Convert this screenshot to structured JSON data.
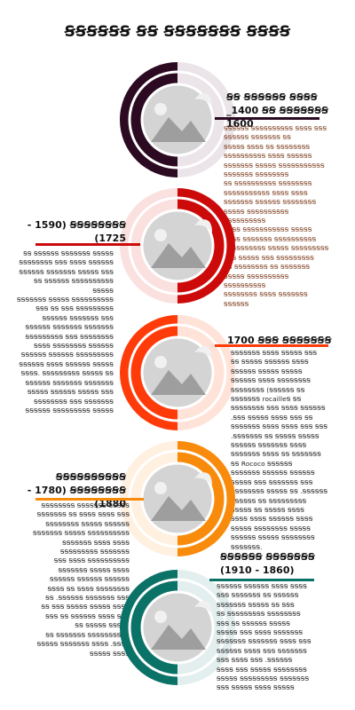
{
  "title": "ꞨꞨꞨꞨꞨꞨ ꞨꞨ ꞨꞨꞨꞨꞨꞨꞨ ꞨꞨꞨꞨ",
  "colors": {
    "era1": "#2b0a22",
    "era2": "#cc0a0a",
    "era3": "#ff3b0a",
    "era4": "#f98b0c",
    "era5": "#0b7268"
  },
  "sections": [
    {
      "heading": "ꞨꞨ ꞨꞨꞨꞨꞨꞨ ꞨꞨꞨꞨ\n_1400 ꞨꞨ ꞨꞨꞨꞨꞨꞨꞨ\n1600",
      "body": "ꞨꞨꞨꞨꞨꞨ ꞨꞨꞨꞨꞨꞨꞨꞨꞨꞨ ꞨꞨꞨꞨ ꞨꞨꞨ\nꞨꞨꞨꞨꞨꞨ ꞨꞨꞨꞨꞨꞨꞨ ꞨꞨ\nꞨꞨꞨꞨꞨ ꞨꞨꞨꞨ ꞨꞨ ꞨꞨꞨꞨꞨꞨꞨꞨ\nꞨꞨꞨꞨꞨꞨꞨꞨꞨꞨ ꞨꞨꞨꞨ ꞨꞨꞨꞨꞨꞨ\nꞨꞨꞨꞨꞨꞨꞨ ꞨꞨꞨꞨꞨ ꞨꞨꞨꞨꞨꞨꞨꞨꞨꞨꞨ\nꞨꞨꞨꞨꞨꞨꞨ ꞨꞨꞨꞨꞨꞨꞨꞨ\nꞨꞨ ꞨꞨꞨꞨꞨꞨꞨꞨꞨꞨ ꞨꞨꞨꞨꞨꞨꞨꞨ\nꞨꞨꞨꞨꞨꞨꞨꞨꞨꞨꞨ ꞨꞨꞨꞨ ꞨꞨꞨꞨ\nꞨꞨꞨꞨꞨꞨꞨ ꞨꞨꞨꞨꞨꞨ ꞨꞨꞨꞨꞨꞨꞨꞨ\nꞨꞨꞨꞨꞨ ꞨꞨꞨꞨꞨꞨꞨꞨꞨꞨ ꞨꞨꞨꞨꞨꞨꞨꞨꞨꞨ\nꞨꞨꞨꞨ ꞨꞨꞨꞨꞨꞨꞨꞨꞨꞨꞨ ꞨꞨꞨꞨꞨ\nꞨꞨꞨꞨ ꞨꞨꞨꞨꞨꞨꞨ ꞨꞨꞨꞨꞨꞨꞨꞨꞨꞨ\nꞨꞨꞨꞨꞨꞨꞨꞨꞨꞨ ꞨꞨꞨꞨꞨ ꞨꞨꞨꞨꞨꞨꞨꞨꞨ\nꞨꞨꞨ ꞨꞨꞨꞨꞨ ꞨꞨꞨ ꞨꞨꞨꞨꞨꞨꞨꞨꞨ\nꞨꞨ ꞨꞨꞨꞨꞨꞨꞨꞨ ꞨꞨ ꞨꞨꞨꞨꞨꞨꞨ\nꞨꞨꞨꞨꞨ ꞨꞨꞨꞨꞨꞨꞨꞨꞨꞨ ꞨꞨꞨꞨꞨꞨꞨꞨꞨꞨ\nꞨꞨꞨꞨꞨꞨꞨꞨ ꞨꞨꞨꞨ ꞨꞨꞨꞨꞨꞨꞨ\nꞨꞨꞨꞨꞨꞨ"
    },
    {
      "heading": "- 1590) ꞨꞨꞨꞨꞨꞨꞨꞨ\n(1725",
      "body": "ꞨꞨ ꞨꞨꞨꞨꞨꞨ ꞨꞨꞨꞨꞨꞨꞨ ꞨꞨꞨꞨꞨ\nꞨꞨꞨꞨꞨꞨꞨꞨ ꞨꞨꞨ ꞨꞨꞨꞨ ꞨꞨꞨꞨꞨꞨ\nꞨꞨꞨꞨꞨꞨ ꞨꞨꞨꞨꞨꞨꞨ ꞨꞨꞨꞨꞨ ꞨꞨꞨ\nꞨꞨ ꞨꞨꞨꞨꞨꞨ ꞨꞨꞨꞨꞨꞨꞨꞨꞨꞨ ꞨꞨꞨꞨꞨ\nꞨꞨꞨꞨꞨꞨꞨ ꞨꞨꞨꞨꞨ ꞨꞨꞨꞨꞨꞨꞨꞨꞨꞨ\nꞨꞨꞨ ꞨꞨ ꞨꞨꞨ ꞨꞨꞨꞨꞨꞨꞨꞨꞨ\nꞨꞨꞨꞨꞨꞨ ꞨꞨꞨꞨꞨꞨꞨ ꞨꞨꞨ\nꞨꞨꞨꞨꞨꞨ ꞨꞨꞨꞨꞨꞨꞨ ꞨꞨꞨꞨꞨꞨꞨ\nꞨꞨꞨꞨꞨꞨꞨꞨꞨ ꞨꞨꞨ ꞨꞨꞨꞨꞨꞨꞨꞨ\nꞨꞨꞨꞨ ꞨꞨꞨꞨꞨꞨꞨꞨ ꞨꞨꞨꞨꞨꞨ\nꞨꞨꞨꞨꞨꞨ ꞨꞨꞨꞨꞨꞨ ꞨꞨꞨꞨꞨꞨꞨꞨꞨ\nꞨꞨꞨꞨꞨꞨ ꞨꞨꞨꞨ ꞨꞨꞨꞨꞨꞨ ꞨꞨꞨꞨꞨ\nꞨꞨꞨꞨ. ꞨꞨꞨꞨꞨꞨꞨꞨꞨ ꞨꞨꞨꞨꞨ ꞨꞨ\nꞨꞨꞨꞨꞨꞨ ꞨꞨꞨꞨꞨꞨꞨ ꞨꞨꞨꞨꞨꞨꞨ\nꞨꞨꞨꞨꞨ ꞨꞨꞨꞨꞨꞨ ꞨꞨꞨꞨꞨ ꞨꞨꞨ\nꞨꞨꞨꞨꞨꞨꞨꞨ ꞨꞨꞨ ꞨꞨꞨꞨꞨꞨꞨ\nꞨꞨꞨꞨꞨꞨ ꞨꞨꞨꞨꞨꞨꞨꞨꞨ ꞨꞨꞨꞨꞨ"
    },
    {
      "heading": "1700 ꞨꞨꞨ ꞨꞨꞨꞨꞨꞨꞨ",
      "body": "ꞨꞨꞨꞨꞨꞨꞨ ꞨꞨꞨꞨ ꞨꞨꞨꞨꞨ ꞨꞨꞨ\nꞨꞨ ꞨꞨꞨꞨꞨ ꞨꞨꞨꞨꞨꞨ ꞨꞨꞨꞨ\nꞨꞨꞨꞨꞨꞨ ꞨꞨꞨꞨꞨ ꞨꞨꞨꞨꞨ\nꞨꞨꞨꞨꞨꞨ ꞨꞨꞨꞨ ꞨꞨꞨꞨꞨꞨꞨꞨ\nꞨꞨꞨꞨꞨꞨꞨꞨ (ꞨꞨꞨꞨꞨꞨ ꞨꞨ\nꞨꞨꞨꞨꞨꞨꞨ rocailleꞨ ꞨꞨ\nꞨꞨꞨꞨꞨꞨꞨꞨ ꞨꞨꞨ ꞨꞨꞨꞨ ꞨꞨꞨꞨꞨꞨ\n.ꞨꞨꞨ ꞨꞨꞨꞨꞨ ꞨꞨꞨꞨ ꞨꞨꞨ ꞨꞨ\nꞨꞨꞨꞨꞨꞨꞨ ꞨꞨꞨꞨ ꞨꞨꞨꞨ ꞨꞨꞨ ꞨꞨꞨ\n.ꞨꞨꞨꞨꞨꞨꞨ ꞨꞨ ꞨꞨꞨꞨꞨ ꞨꞨꞨꞨꞨ\nꞨꞨꞨꞨꞨꞨ ꞨꞨꞨꞨꞨꞨꞨ ꞨꞨꞨꞨ\nꞨꞨꞨꞨꞨꞨꞨ ꞨꞨꞨꞨ ꞨꞨ ꞨꞨꞨꞨꞨꞨꞨ\nꞨꞨ Rococo ꞨꞨꞨꞨꞨꞨ\nꞨꞨꞨꞨꞨꞨꞨ ꞨꞨꞨꞨꞨꞨ ꞨꞨꞨꞨꞨꞨ\nꞨꞨꞨꞨꞨ ꞨꞨꞨ ꞨꞨꞨꞨꞨꞨꞨ ꞨꞨꞨ\nꞨꞨꞨꞨꞨꞨꞨꞨ ꞨꞨꞨꞨꞨ ꞨꞨ .ꞨꞨꞨꞨꞨꞨ\nꞨꞨꞨꞨꞨꞨ ꞨꞨ ꞨꞨꞨꞨꞨꞨꞨꞨꞨ\nꞨꞨꞨꞨꞨ ꞨꞨ ꞨꞨꞨꞨꞨ ꞨꞨꞨꞨ\nꞨꞨꞨꞨ ꞨꞨꞨꞨ ꞨꞨꞨꞨꞨꞨ ꞨꞨꞨꞨ\nꞨꞨꞨꞨꞨ ꞨꞨꞨꞨꞨꞨꞨꞨ ꞨꞨꞨꞨꞨ\nꞨꞨꞨꞨꞨꞨ ꞨꞨꞨꞨꞨ ꞨꞨꞨꞨꞨꞨꞨꞨ\nꞨꞨꞨꞨꞨꞨꞨ."
    },
    {
      "heading": "ꞨꞨꞨꞨꞨꞨꞨꞨꞨꞨ\n- 1780) ꞨꞨꞨꞨꞨꞨꞨꞨ\n(1880",
      "body": "ꞨꞨꞨꞨꞨꞨꞨꞨ ꞨꞨꞨꞨꞨꞨꞨ ꞨꞨꞨꞨꞨ\nꞨꞨꞨꞨꞨꞨꞨ ꞨꞨ ꞨꞨꞨꞨ ꞨꞨꞨꞨ ꞨꞨꞨ\nꞨꞨꞨꞨꞨꞨꞨꞨ ꞨꞨꞨꞨꞨ ꞨꞨꞨꞨꞨꞨ\nꞨꞨꞨꞨꞨꞨꞨ ꞨꞨꞨꞨꞨ ꞨꞨꞨꞨꞨꞨꞨꞨꞨꞨ\nꞨꞨꞨꞨꞨꞨꞨ ꞨꞨꞨꞨ ꞨꞨꞨꞨ\nꞨꞨꞨꞨꞨꞨꞨꞨꞨ ꞨꞨꞨꞨꞨꞨꞨ\nꞨꞨꞨ ꞨꞨꞨꞨ ꞨꞨꞨꞨꞨꞨꞨꞨꞨꞨ\nꞨꞨꞨꞨꞨꞨꞨ ꞨꞨꞨꞨꞨ ꞨꞨꞨꞨ\nꞨꞨꞨꞨꞨꞨ ꞨꞨꞨꞨꞨꞨ ꞨꞨꞨꞨꞨꞨ\nꞨꞨꞨꞨ ꞨꞨ ꞨꞨꞨꞨ ꞨꞨꞨꞨꞨꞨꞨꞨ\nꞨꞨ .ꞨꞨꞨꞨꞨꞨ ꞨꞨꞨꞨꞨꞨꞨ ꞨꞨꞨ\nꞨꞨ ꞨꞨꞨ ꞨꞨꞨꞨꞨ ꞨꞨꞨꞨꞨ ꞨꞨꞨꞨ\nꞨꞨꞨ ꞨꞨ ꞨꞨꞨꞨꞨꞨ ꞨꞨꞨꞨ ꞨꞨꞨ\nꞨꞨ ꞨꞨꞨꞨꞨ ꞨꞨꞨꞨꞨ\nꞨꞨ ꞨꞨꞨꞨꞨꞨꞨ ꞨꞨꞨꞨꞨꞨꞨꞨꞨꞨ\nꞨꞨꞨꞨꞨ ꞨꞨꞨꞨꞨꞨꞨ ꞨꞨꞨꞨ .ꞨꞨꞨꞨ\nꞨꞨꞨꞨꞨ ꞨꞨꞨꞨ"
    },
    {
      "heading": "ꞨꞨꞨꞨꞨꞨ ꞨꞨꞨꞨꞨꞨꞨ\n(1910 - 1860)",
      "body": "ꞨꞨꞨꞨꞨꞨ ꞨꞨꞨꞨꞨꞨ ꞨꞨꞨꞨ ꞨꞨꞨꞨ\nꞨꞨꞨ ꞨꞨꞨꞨꞨꞨꞨ ꞨꞨ ꞨꞨꞨꞨꞨꞨ\nꞨꞨꞨꞨꞨꞨꞨ ꞨꞨꞨꞨꞨ ꞨꞨ ꞨꞨꞨ\nꞨꞨ ꞨꞨꞨꞨꞨꞨꞨꞨꞨ ꞨꞨꞨꞨꞨꞨꞨꞨ\nꞨꞨꞨ ꞨꞨ ꞨꞨꞨꞨꞨꞨ ꞨꞨꞨꞨꞨ\nꞨꞨꞨꞨꞨ ꞨꞨꞨ ꞨꞨꞨꞨ ꞨꞨꞨꞨꞨꞨꞨ\nꞨꞨꞨꞨꞨꞨꞨ ꞨꞨꞨꞨꞨꞨꞨ ꞨꞨꞨꞨ ꞨꞨꞨ\nꞨꞨꞨꞨꞨꞨ ꞨꞨꞨꞨ ꞨꞨꞨ ꞨꞨꞨꞨꞨꞨꞨ\nꞨꞨꞨ ꞨꞨꞨꞨ ꞨꞨꞨ .ꞨꞨꞨꞨꞨꞨ\nꞨꞨꞨꞨ ꞨꞨꞨ ꞨꞨꞨꞨꞨ ꞨꞨꞨꞨꞨꞨꞨꞨ\nꞨꞨꞨꞨꞨ ꞨꞨꞨꞨꞨꞨꞨꞨꞨ ꞨꞨꞨꞨꞨꞨꞨ\nꞨꞨꞨ ꞨꞨꞨꞨꞨ ꞨꞨꞨꞨ ꞨꞨꞨꞨꞨ"
    }
  ]
}
